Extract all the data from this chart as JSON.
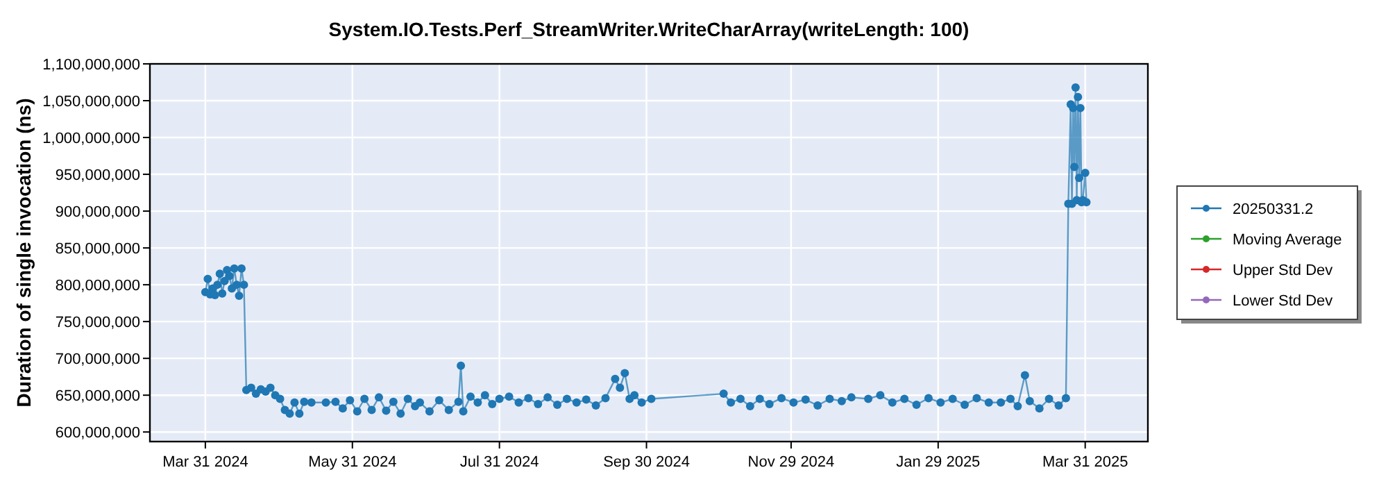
{
  "chart_data": {
    "type": "line",
    "title": "System.IO.Tests.Perf_StreamWriter.WriteCharArray(writeLength: 100)",
    "ylabel": "Duration of single invocation (ns)",
    "x": [
      "2024-03-31",
      "2024-04-01",
      "2024-04-02",
      "2024-04-03",
      "2024-04-04",
      "2024-04-05",
      "2024-04-06",
      "2024-04-07",
      "2024-04-08",
      "2024-04-09",
      "2024-04-10",
      "2024-04-11",
      "2024-04-12",
      "2024-04-13",
      "2024-04-14",
      "2024-04-15",
      "2024-04-16",
      "2024-04-17",
      "2024-04-19",
      "2024-04-21",
      "2024-04-23",
      "2024-04-25",
      "2024-04-27",
      "2024-04-29",
      "2024-05-01",
      "2024-05-03",
      "2024-05-05",
      "2024-05-07",
      "2024-05-09",
      "2024-05-11",
      "2024-05-14",
      "2024-05-20",
      "2024-05-24",
      "2024-05-27",
      "2024-05-30",
      "2024-06-02",
      "2024-06-05",
      "2024-06-08",
      "2024-06-11",
      "2024-06-14",
      "2024-06-17",
      "2024-06-20",
      "2024-06-23",
      "2024-06-26",
      "2024-06-28",
      "2024-07-02",
      "2024-07-06",
      "2024-07-10",
      "2024-07-14",
      "2024-07-15",
      "2024-07-16",
      "2024-07-19",
      "2024-07-22",
      "2024-07-25",
      "2024-07-28",
      "2024-07-31",
      "2024-08-04",
      "2024-08-08",
      "2024-08-12",
      "2024-08-16",
      "2024-08-20",
      "2024-08-24",
      "2024-08-28",
      "2024-09-01",
      "2024-09-05",
      "2024-09-09",
      "2024-09-13",
      "2024-09-17",
      "2024-09-19",
      "2024-09-21",
      "2024-09-23",
      "2024-09-25",
      "2024-09-28",
      "2024-10-02",
      "2024-11-01",
      "2024-11-04",
      "2024-11-08",
      "2024-11-12",
      "2024-11-16",
      "2024-11-20",
      "2024-11-25",
      "2024-11-30",
      "2024-12-05",
      "2024-12-10",
      "2024-12-15",
      "2024-12-20",
      "2024-12-24",
      "2024-12-31",
      "2025-01-05",
      "2025-01-10",
      "2025-01-15",
      "2025-01-20",
      "2025-01-25",
      "2025-01-30",
      "2025-02-04",
      "2025-02-09",
      "2025-02-14",
      "2025-02-19",
      "2025-02-24",
      "2025-02-28",
      "2025-03-03",
      "2025-03-06",
      "2025-03-08",
      "2025-03-12",
      "2025-03-16",
      "2025-03-20",
      "2025-03-23",
      "2025-03-24",
      "2025-03-25",
      "2025-03-25T12:00",
      "2025-03-26",
      "2025-03-26T12:00",
      "2025-03-27",
      "2025-03-27T12:00",
      "2025-03-28",
      "2025-03-28T12:00",
      "2025-03-29",
      "2025-03-29T12:00",
      "2025-03-30",
      "2025-03-31",
      "2025-03-31T12:00"
    ],
    "series": [
      {
        "name": "20250331.2",
        "color": "#1f77b4",
        "values": [
          790000000,
          808000000,
          787000000,
          795000000,
          786000000,
          800000000,
          815000000,
          788000000,
          805000000,
          820000000,
          812000000,
          795000000,
          822000000,
          800000000,
          785000000,
          822000000,
          800000000,
          657000000,
          660000000,
          652000000,
          658000000,
          655000000,
          660000000,
          650000000,
          645000000,
          630000000,
          625000000,
          640000000,
          625000000,
          641000000,
          640000000,
          640000000,
          641000000,
          632000000,
          643000000,
          628000000,
          645000000,
          630000000,
          647000000,
          629000000,
          641000000,
          625000000,
          645000000,
          635000000,
          640000000,
          628000000,
          643000000,
          630000000,
          641000000,
          690000000,
          628000000,
          648000000,
          640000000,
          650000000,
          638000000,
          645000000,
          648000000,
          640000000,
          646000000,
          638000000,
          647000000,
          637000000,
          645000000,
          640000000,
          644000000,
          636000000,
          646000000,
          672000000,
          660000000,
          680000000,
          645000000,
          650000000,
          640000000,
          645000000,
          652000000,
          640000000,
          645000000,
          635000000,
          645000000,
          638000000,
          646000000,
          640000000,
          644000000,
          636000000,
          645000000,
          642000000,
          647000000,
          645000000,
          650000000,
          640000000,
          645000000,
          637000000,
          646000000,
          640000000,
          645000000,
          637000000,
          646000000,
          640000000,
          640000000,
          645000000,
          635000000,
          677000000,
          642000000,
          632000000,
          645000000,
          636000000,
          646000000,
          910000000,
          1045000000,
          910000000,
          1040000000,
          960000000,
          1068000000,
          915000000,
          1055000000,
          945000000,
          1040000000,
          912000000,
          915000000,
          952000000,
          912000000
        ]
      },
      {
        "name": "Moving Average",
        "color": "#2ca02c",
        "values": [
          null,
          null,
          null,
          null,
          null,
          null,
          null,
          null,
          null,
          null,
          null,
          null,
          null,
          null,
          null,
          null,
          null,
          null,
          null,
          null,
          null,
          null,
          null,
          null,
          null,
          null,
          null,
          null,
          null,
          null,
          null,
          null,
          null,
          null,
          null,
          null,
          null,
          null,
          null,
          null,
          null,
          null,
          null,
          null,
          null,
          null,
          null,
          null,
          null,
          null,
          null,
          null,
          null,
          null,
          null,
          null,
          null,
          null,
          null,
          null,
          null,
          null,
          null,
          null,
          null,
          null,
          null,
          null,
          null,
          null,
          null,
          null,
          null,
          null,
          null,
          null,
          null,
          null,
          null,
          null,
          null,
          null,
          null,
          null,
          null,
          null,
          null,
          null,
          null,
          null,
          null,
          null,
          null,
          null,
          null,
          null,
          null,
          null,
          null,
          null,
          null,
          null,
          null,
          null,
          null,
          null,
          null,
          null,
          null,
          null,
          null,
          null,
          null,
          null,
          null,
          null,
          null,
          null,
          null,
          null,
          null
        ]
      },
      {
        "name": "Upper Std Dev",
        "color": "#d62728",
        "values": [
          null,
          null,
          null,
          null,
          null,
          null,
          null,
          null,
          null,
          null,
          null,
          null,
          null,
          null,
          null,
          null,
          null,
          null,
          null,
          null,
          null,
          null,
          null,
          null,
          null,
          null,
          null,
          null,
          null,
          null,
          null,
          null,
          null,
          null,
          null,
          null,
          null,
          null,
          null,
          null,
          null,
          null,
          null,
          null,
          null,
          null,
          null,
          null,
          null,
          null,
          null,
          null,
          null,
          null,
          null,
          null,
          null,
          null,
          null,
          null,
          null,
          null,
          null,
          null,
          null,
          null,
          null,
          null,
          null,
          null,
          null,
          null,
          null,
          null,
          null,
          null,
          null,
          null,
          null,
          null,
          null,
          null,
          null,
          null,
          null,
          null,
          null,
          null,
          null,
          null,
          null,
          null,
          null,
          null,
          null,
          null,
          null,
          null,
          null,
          null,
          null,
          null,
          null,
          null,
          null,
          null,
          null,
          null,
          null,
          null,
          null,
          null,
          null,
          null,
          null,
          null,
          null,
          null,
          null,
          null,
          null
        ]
      },
      {
        "name": "Lower Std Dev",
        "color": "#9467bd",
        "values": [
          null,
          null,
          null,
          null,
          null,
          null,
          null,
          null,
          null,
          null,
          null,
          null,
          null,
          null,
          null,
          null,
          null,
          null,
          null,
          null,
          null,
          null,
          null,
          null,
          null,
          null,
          null,
          null,
          null,
          null,
          null,
          null,
          null,
          null,
          null,
          null,
          null,
          null,
          null,
          null,
          null,
          null,
          null,
          null,
          null,
          null,
          null,
          null,
          null,
          null,
          null,
          null,
          null,
          null,
          null,
          null,
          null,
          null,
          null,
          null,
          null,
          null,
          null,
          null,
          null,
          null,
          null,
          null,
          null,
          null,
          null,
          null,
          null,
          null,
          null,
          null,
          null,
          null,
          null,
          null,
          null,
          null,
          null,
          null,
          null,
          null,
          null,
          null,
          null,
          null,
          null,
          null,
          null,
          null,
          null,
          null,
          null,
          null,
          null,
          null,
          null,
          null,
          null,
          null,
          null,
          null,
          null,
          null,
          null,
          null,
          null,
          null,
          null,
          null,
          null,
          null,
          null,
          null,
          null,
          null,
          null
        ]
      }
    ],
    "xlim": [
      "2024-03-08",
      "2025-04-26"
    ],
    "xticks": [
      {
        "value": "2024-03-31",
        "label": "Mar 31 2024"
      },
      {
        "value": "2024-05-31",
        "label": "May 31 2024"
      },
      {
        "value": "2024-07-31",
        "label": "Jul 31 2024"
      },
      {
        "value": "2024-09-30",
        "label": "Sep 30 2024"
      },
      {
        "value": "2024-11-29",
        "label": "Nov 29 2024"
      },
      {
        "value": "2025-01-29",
        "label": "Jan 29 2025"
      },
      {
        "value": "2025-03-31",
        "label": "Mar 31 2025"
      }
    ],
    "ylim": [
      587000000,
      1100000000
    ],
    "yticks": [
      {
        "value": 600000000,
        "label": "600,000,000"
      },
      {
        "value": 650000000,
        "label": "650,000,000"
      },
      {
        "value": 700000000,
        "label": "700,000,000"
      },
      {
        "value": 750000000,
        "label": "750,000,000"
      },
      {
        "value": 800000000,
        "label": "800,000,000"
      },
      {
        "value": 850000000,
        "label": "850,000,000"
      },
      {
        "value": 900000000,
        "label": "900,000,000"
      },
      {
        "value": 950000000,
        "label": "950,000,000"
      },
      {
        "value": 1000000000,
        "label": "1,000,000,000"
      },
      {
        "value": 1050000000,
        "label": "1,050,000,000"
      },
      {
        "value": 1100000000,
        "label": "1,100,000,000"
      }
    ],
    "grid": true,
    "legend": "right",
    "marker": "circle",
    "line_style": "solid"
  }
}
